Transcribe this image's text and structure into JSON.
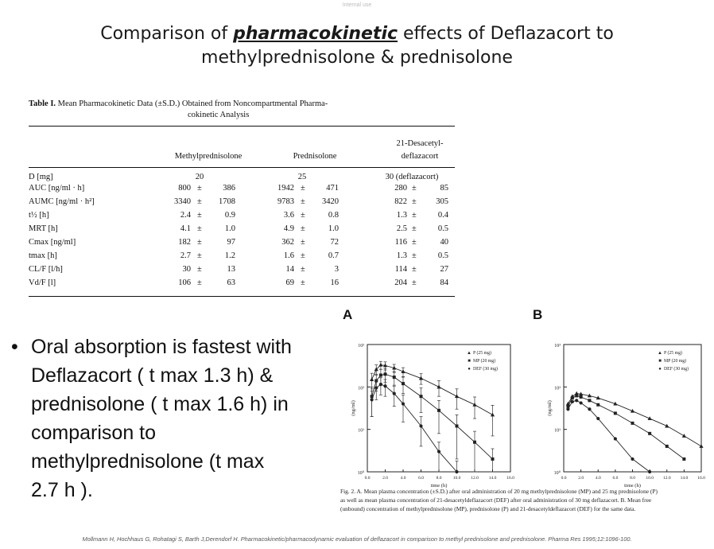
{
  "top_mark": "Internal use",
  "title": {
    "line1_pre": "Comparison of ",
    "line1_emph": "pharmacokinetic",
    "line1_post": "  effects of Deflazacort to",
    "line2": "methylprednisolone  & prednisolone"
  },
  "table": {
    "caption_bold": "Table I.",
    "caption_line1": " Mean Pharmacokinetic Data (±S.D.) Obtained from Noncompartmental Pharma-",
    "caption_line2": "cokinetic Analysis",
    "headers": {
      "col1": "Methylprednisolone",
      "col2": "Prednisolone",
      "col3_line1": "21-Desacetyl-",
      "col3_line2": "deflazacort"
    },
    "dose_row": {
      "label": "D [mg]",
      "v1": "20",
      "v2": "25",
      "v3": "30 (deflazacort)"
    },
    "rows": [
      {
        "label": "AUC [ng/ml · h]",
        "v1": "800",
        "s1": "386",
        "v2": "1942",
        "s2": "471",
        "v3": "280",
        "s3": "85"
      },
      {
        "label": "AUMC [ng/ml · h²]",
        "v1": "3340",
        "s1": "1708",
        "v2": "9783",
        "s2": "3420",
        "v3": "822",
        "s3": "305"
      },
      {
        "label": "t½ [h]",
        "v1": "2.4",
        "s1": "0.9",
        "v2": "3.6",
        "s2": "0.8",
        "v3": "1.3",
        "s3": "0.4"
      },
      {
        "label": "MRT [h]",
        "v1": "4.1",
        "s1": "1.0",
        "v2": "4.9",
        "s2": "1.0",
        "v3": "2.5",
        "s3": "0.5"
      },
      {
        "label": "Cmax [ng/ml]",
        "v1": "182",
        "s1": "97",
        "v2": "362",
        "s2": "72",
        "v3": "116",
        "s3": "40"
      },
      {
        "label": "tmax [h]",
        "v1": "2.7",
        "s1": "1.2",
        "v2": "1.6",
        "s2": "0.7",
        "v3": "1.3",
        "s3": "0.5"
      },
      {
        "label": "CL/F [l/h]",
        "v1": "30",
        "s1": "13",
        "v2": "14",
        "s2": "3",
        "v3": "114",
        "s3": "27"
      },
      {
        "label": "Vd/F [l]",
        "v1": "106",
        "s1": "63",
        "v2": "69",
        "s2": "16",
        "v3": "204",
        "s3": "84"
      }
    ],
    "pm": "±"
  },
  "bullet": {
    "dot": "•",
    "lines": [
      "Oral absorption is fastest with",
      "Deflazacort ( t max 1.3 h) &",
      "prednisolone ( t max 1.6 h) in",
      "comparison to",
      "methylprednisolone (t max",
      "2.7 h )."
    ]
  },
  "panels": {
    "a_label": "A",
    "b_label": "B",
    "a_ylabel": "(ng/ml)",
    "b_ylabel": "(ng/ml)",
    "xlabel": "time (h)",
    "y_ticks": [
      "10³",
      "10²",
      "10¹",
      "10⁰"
    ],
    "x_ticks": [
      "0.0",
      "2.0",
      "4.0",
      "6.0",
      "8.0",
      "10.0",
      "12.0",
      "14.0",
      "16.0"
    ],
    "legend": [
      {
        "marker": "▲",
        "label": "P  (25 mg)"
      },
      {
        "marker": "■",
        "label": "MP  (20 mg)"
      },
      {
        "marker": "●",
        "label": "DEF  (30 mg)"
      }
    ]
  },
  "chart_data": [
    {
      "type": "line",
      "panel": "A",
      "xlabel": "time (h)",
      "ylabel": "(ng/ml)",
      "yscale": "log",
      "ylim": [
        1,
        1000
      ],
      "xlim": [
        0,
        16
      ],
      "series": [
        {
          "name": "P (25 mg)",
          "x": [
            0.5,
            1,
            1.5,
            2,
            3,
            4,
            6,
            8,
            10,
            12,
            14
          ],
          "y": [
            150,
            260,
            330,
            320,
            280,
            230,
            160,
            100,
            60,
            38,
            22
          ],
          "error": [
            60,
            70,
            70,
            70,
            60,
            55,
            45,
            40,
            30,
            20,
            15
          ]
        },
        {
          "name": "MP (20 mg)",
          "x": [
            0.5,
            1,
            1.5,
            2,
            3,
            4,
            6,
            8,
            10,
            12,
            14
          ],
          "y": [
            60,
            140,
            190,
            200,
            170,
            120,
            60,
            28,
            12,
            5,
            2
          ],
          "error": [
            40,
            60,
            70,
            70,
            60,
            50,
            35,
            20,
            10,
            4,
            1.5
          ]
        },
        {
          "name": "DEF (30 mg)",
          "x": [
            0.5,
            1,
            1.5,
            2,
            3,
            4,
            6,
            8,
            10
          ],
          "y": [
            50,
            95,
            115,
            105,
            70,
            40,
            12,
            3,
            1
          ],
          "error": [
            30,
            45,
            50,
            45,
            35,
            25,
            8,
            2,
            0.8
          ]
        }
      ]
    },
    {
      "type": "line",
      "panel": "B",
      "xlabel": "time (h)",
      "ylabel": "(ng/ml)",
      "yscale": "log",
      "ylim": [
        1,
        1000
      ],
      "xlim": [
        0,
        16
      ],
      "series": [
        {
          "name": "P (25 mg)",
          "x": [
            0.5,
            1,
            1.5,
            2,
            3,
            4,
            6,
            8,
            10,
            12,
            14,
            16
          ],
          "y": [
            40,
            60,
            70,
            68,
            62,
            55,
            40,
            27,
            18,
            12,
            7,
            4
          ]
        },
        {
          "name": "MP (20 mg)",
          "x": [
            0.5,
            1,
            1.5,
            2,
            3,
            4,
            6,
            8,
            10,
            12,
            14
          ],
          "y": [
            35,
            55,
            62,
            58,
            48,
            38,
            24,
            14,
            8,
            4,
            2
          ]
        },
        {
          "name": "DEF (30 mg)",
          "x": [
            0.5,
            1,
            1.5,
            2,
            3,
            4,
            6,
            8,
            10
          ],
          "y": [
            30,
            45,
            48,
            42,
            30,
            18,
            6,
            2,
            1
          ]
        }
      ]
    }
  ],
  "fig_caption": {
    "line1": "Fig. 2.  A. Mean plasma concentration (±S.D.) after oral administration of 20 mg methylprednisolone (MP) and 25 mg prednisolone (P)",
    "line2": "as well as mean plasma concentration of 21-desacetyldeflazacort (DEF) after oral administration of 30 mg deflazacort. B. Mean free",
    "line3": "(unbound) concentration of methylprednisolone (MP), prednisolone (P) and 21-desacetyldeflazacort (DEF) for the same data."
  },
  "footer": "Mollmann H, Hochhaus G, Rohatagi S, Barth J,Derendorf H. Pharmacokinetic/pharmacodynamic evaluation of deflazacort in comparison to methyl prednisolone and prednisolone. Pharma Res 1995;12:1096-100."
}
